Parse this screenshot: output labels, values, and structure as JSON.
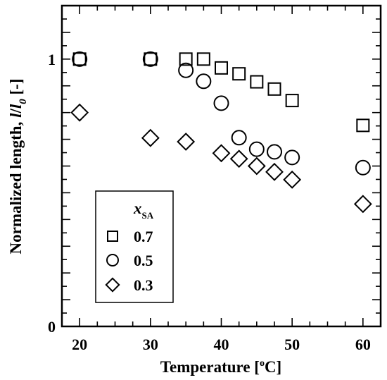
{
  "chart_data": {
    "type": "scatter",
    "xlabel": "Temperature [°C]",
    "ylabel": "Normalized length, l/l0  [-]",
    "xlim": [
      17.5,
      62.5
    ],
    "ylim": [
      0,
      1.2
    ],
    "x_ticks": [
      "20",
      "30",
      "40",
      "50",
      "60"
    ],
    "y_ticks": [
      "0",
      "1"
    ],
    "legend": {
      "title": "xSA",
      "position": "bottom-left"
    },
    "series": [
      {
        "name": "0.7",
        "marker": "square",
        "points": [
          {
            "x": 20,
            "y": 1.0
          },
          {
            "x": 30,
            "y": 1.0
          },
          {
            "x": 35,
            "y": 1.0
          },
          {
            "x": 37.5,
            "y": 1.0
          },
          {
            "x": 40,
            "y": 0.967
          },
          {
            "x": 42.5,
            "y": 0.945
          },
          {
            "x": 45,
            "y": 0.915
          },
          {
            "x": 47.5,
            "y": 0.888
          },
          {
            "x": 50,
            "y": 0.845
          },
          {
            "x": 60,
            "y": 0.752
          }
        ]
      },
      {
        "name": "0.5",
        "marker": "circle",
        "points": [
          {
            "x": 20,
            "y": 1.0
          },
          {
            "x": 30,
            "y": 1.0
          },
          {
            "x": 35,
            "y": 0.958
          },
          {
            "x": 37.5,
            "y": 0.917
          },
          {
            "x": 40,
            "y": 0.835
          },
          {
            "x": 42.5,
            "y": 0.706
          },
          {
            "x": 45,
            "y": 0.663
          },
          {
            "x": 47.5,
            "y": 0.653
          },
          {
            "x": 50,
            "y": 0.632
          },
          {
            "x": 60,
            "y": 0.594
          }
        ]
      },
      {
        "name": "0.3",
        "marker": "diamond",
        "points": [
          {
            "x": 20,
            "y": 0.8
          },
          {
            "x": 30,
            "y": 0.705
          },
          {
            "x": 35,
            "y": 0.691
          },
          {
            "x": 40,
            "y": 0.648
          },
          {
            "x": 42.5,
            "y": 0.627
          },
          {
            "x": 45,
            "y": 0.6
          },
          {
            "x": 47.5,
            "y": 0.578
          },
          {
            "x": 50,
            "y": 0.549
          },
          {
            "x": 60,
            "y": 0.458
          }
        ]
      }
    ]
  }
}
